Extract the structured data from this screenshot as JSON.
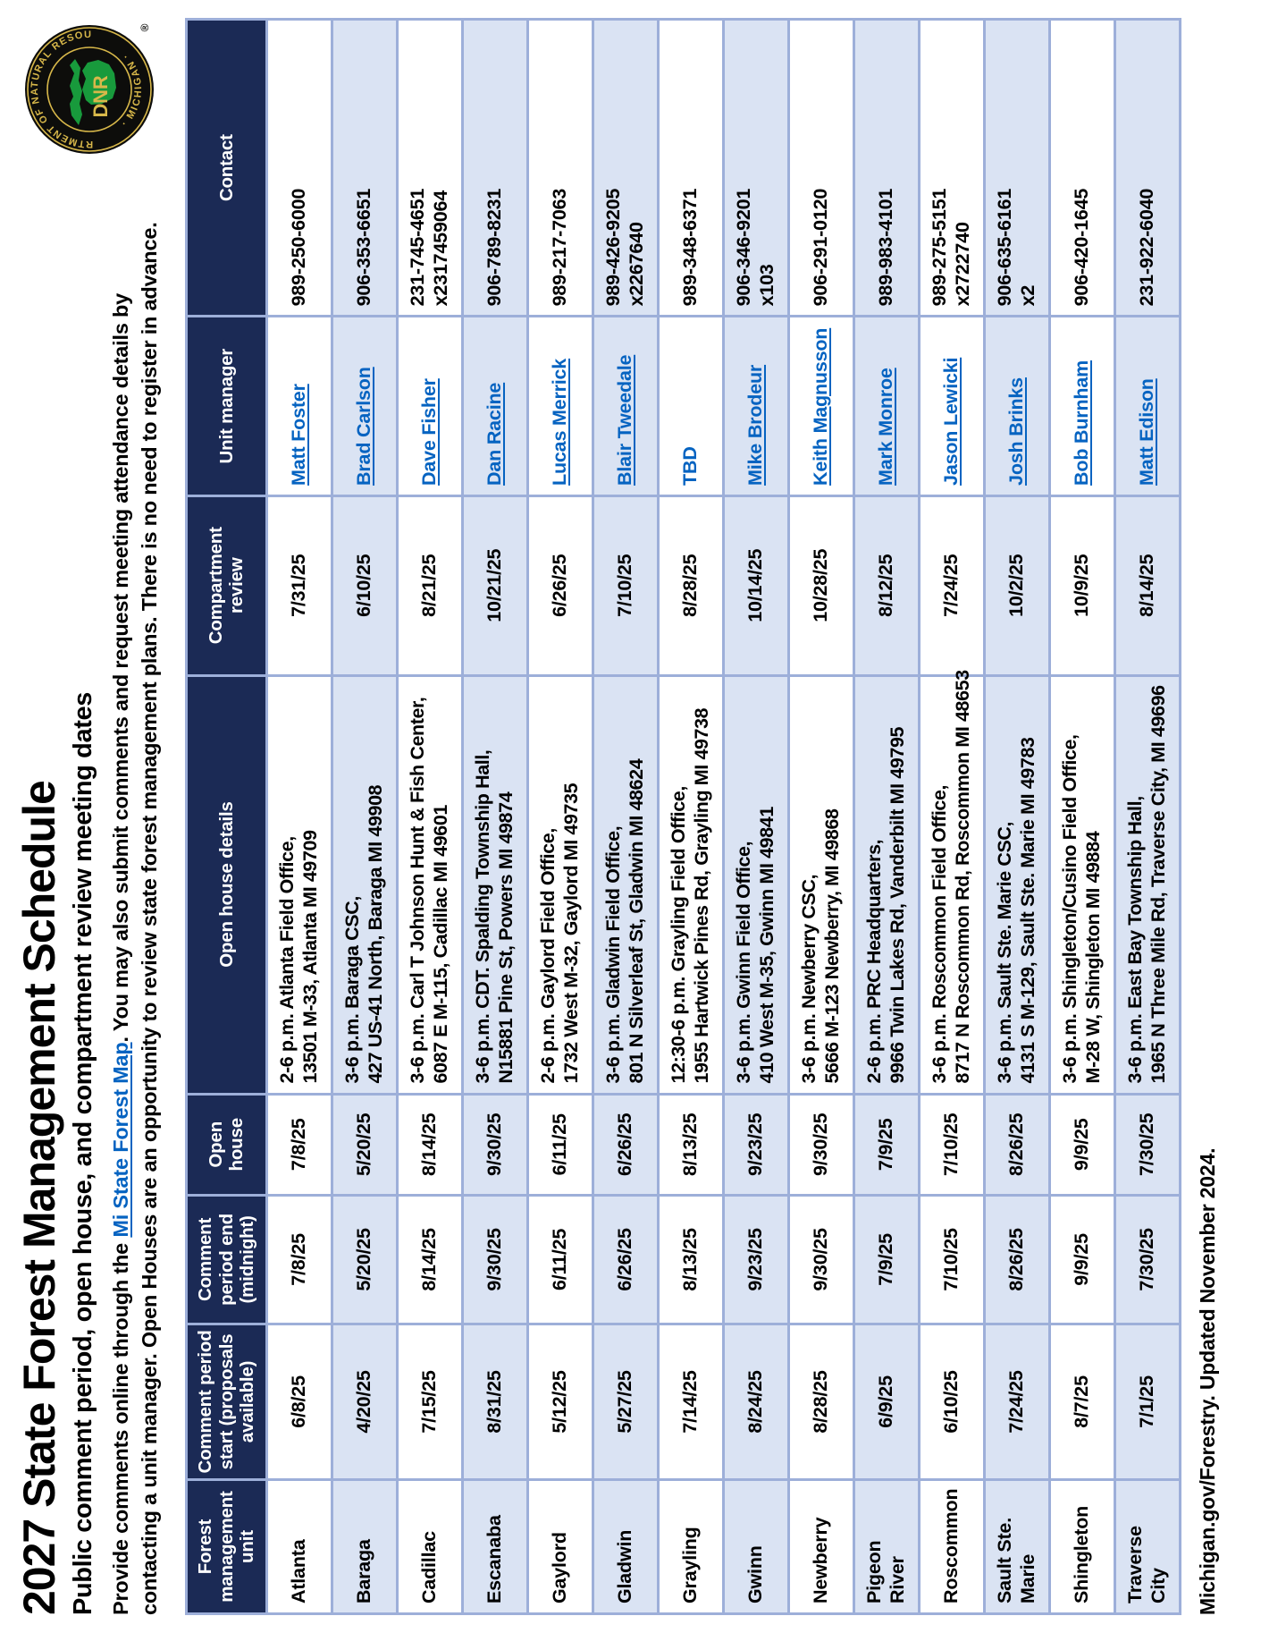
{
  "title": "2027 State Forest Management Schedule",
  "subtitle": "Public comment period, open house, and compartment review meeting dates",
  "intro": {
    "pre_link": "Provide comments online through the ",
    "link_text": "Mi State Forest Map",
    "line1_rest": ". You may also submit comments and request meeting attendance details by",
    "line2": "contacting a unit manager. Open Houses are an opportunity to review state forest management plans. There is no need to register in advance."
  },
  "logo": {
    "ring_text_top": "DEPARTMENT OF NATURAL RESOURCES",
    "ring_text_bottom": "· MICHIGAN ·",
    "acronym": "DNR",
    "registered": "®"
  },
  "colors": {
    "navy": "#1b2a55",
    "border": "#9dafd9",
    "shade": "#dae3f3",
    "link": "#0563c1",
    "logo_gold": "#d8b84a",
    "logo_green": "#189a3c"
  },
  "table": {
    "columns": [
      {
        "id": "unit",
        "label": "Forest management unit"
      },
      {
        "id": "comment_start",
        "label": "Comment period start (proposals available)"
      },
      {
        "id": "comment_end",
        "label": "Comment period end (midnight)"
      },
      {
        "id": "open_house",
        "label": "Open house"
      },
      {
        "id": "details",
        "label": "Open house details"
      },
      {
        "id": "review",
        "label": "Compartment review"
      },
      {
        "id": "manager",
        "label": "Unit manager"
      },
      {
        "id": "contact",
        "label": "Contact"
      }
    ],
    "rows": [
      {
        "unit": "Atlanta",
        "comment_start": "6/8/25",
        "comment_end": "7/8/25",
        "open_house": "7/8/25",
        "details": [
          "2-6 p.m. Atlanta Field Office,",
          "13501 M-33, Atlanta MI 49709"
        ],
        "review": "7/31/25",
        "manager": "Matt Foster",
        "manager_is_link": true,
        "contact": [
          "989-250-6000"
        ]
      },
      {
        "unit": "Baraga",
        "comment_start": "4/20/25",
        "comment_end": "5/20/25",
        "open_house": "5/20/25",
        "details": [
          "3-6 p.m. Baraga CSC,",
          "427 US-41 North, Baraga MI 49908"
        ],
        "review": "6/10/25",
        "manager": "Brad Carlson",
        "manager_is_link": true,
        "contact": [
          "906-353-6651"
        ]
      },
      {
        "unit": "Cadillac",
        "comment_start": "7/15/25",
        "comment_end": "8/14/25",
        "open_house": "8/14/25",
        "details": [
          "3-6 p.m. Carl T Johnson Hunt & Fish Center,",
          "6087 E M-115, Cadillac MI 49601"
        ],
        "review": "8/21/25",
        "manager": "Dave Fisher",
        "manager_is_link": true,
        "contact": [
          "231-745-4651",
          "x2317459064"
        ]
      },
      {
        "unit": "Escanaba",
        "comment_start": "8/31/25",
        "comment_end": "9/30/25",
        "open_house": "9/30/25",
        "details": [
          "3-6 p.m. CDT. Spalding Township Hall,",
          "N15881 Pine St, Powers MI 49874"
        ],
        "review": "10/21/25",
        "manager": "Dan Racine",
        "manager_is_link": true,
        "contact": [
          "906-789-8231"
        ]
      },
      {
        "unit": "Gaylord",
        "comment_start": "5/12/25",
        "comment_end": "6/11/25",
        "open_house": "6/11/25",
        "details": [
          "2-6 p.m. Gaylord Field Office,",
          "1732 West M-32, Gaylord MI 49735"
        ],
        "review": "6/26/25",
        "manager": "Lucas Merrick",
        "manager_is_link": true,
        "contact": [
          "989-217-7063"
        ]
      },
      {
        "unit": "Gladwin",
        "comment_start": "5/27/25",
        "comment_end": "6/26/25",
        "open_house": "6/26/25",
        "details": [
          "3-6 p.m. Gladwin Field Office,",
          "801 N Silverleaf St, Gladwin MI 48624"
        ],
        "review": "7/10/25",
        "manager": "Blair Tweedale",
        "manager_is_link": true,
        "contact": [
          "989-426-9205",
          "x2267640"
        ]
      },
      {
        "unit": "Grayling",
        "comment_start": "7/14/25",
        "comment_end": "8/13/25",
        "open_house": "8/13/25",
        "details": [
          "12:30-6 p.m. Grayling Field Office,",
          "1955 Hartwick Pines Rd, Grayling MI 49738"
        ],
        "review": "8/28/25",
        "manager": "TBD",
        "manager_is_link": false,
        "contact": [
          "989-348-6371"
        ]
      },
      {
        "unit": "Gwinn",
        "comment_start": "8/24/25",
        "comment_end": "9/23/25",
        "open_house": "9/23/25",
        "details": [
          "3-6 p.m. Gwinn Field Office,",
          "410 West M-35, Gwinn MI 49841"
        ],
        "review": "10/14/25",
        "manager": "Mike Brodeur",
        "manager_is_link": true,
        "contact": [
          "906-346-9201",
          "x103"
        ]
      },
      {
        "unit": "Newberry",
        "comment_start": "8/28/25",
        "comment_end": "9/30/25",
        "open_house": "9/30/25",
        "details": [
          "3-6 p.m. Newberry CSC,",
          "5666 M-123 Newberry, MI 49868"
        ],
        "review": "10/28/25",
        "manager": "Keith Magnusson",
        "manager_is_link": true,
        "contact": [
          "906-291-0120"
        ]
      },
      {
        "unit": "Pigeon River",
        "comment_start": "6/9/25",
        "comment_end": "7/9/25",
        "open_house": "7/9/25",
        "details": [
          "2-6 p.m. PRC Headquarters,",
          "9966 Twin Lakes Rd, Vanderbilt MI 49795"
        ],
        "review": "8/12/25",
        "manager": "Mark Monroe",
        "manager_is_link": true,
        "contact": [
          "989-983-4101"
        ]
      },
      {
        "unit": "Roscommon",
        "comment_start": "6/10/25",
        "comment_end": "7/10/25",
        "open_house": "7/10/25",
        "details": [
          "3-6 p.m. Roscommon Field Office,",
          "8717 N Roscommon Rd, Roscommon MI 48653"
        ],
        "review": "7/24/25",
        "manager": "Jason Lewicki",
        "manager_is_link": true,
        "contact": [
          "989-275-5151",
          "x2722740"
        ]
      },
      {
        "unit": "Sault Ste. Marie",
        "comment_start": "7/24/25",
        "comment_end": "8/26/25",
        "open_house": "8/26/25",
        "details": [
          "3-6 p.m. Sault Ste. Marie CSC,",
          "4131 S M-129, Sault Ste. Marie MI 49783"
        ],
        "review": "10/2/25",
        "manager": "Josh Brinks",
        "manager_is_link": true,
        "contact": [
          "906-635-6161",
          "x2"
        ]
      },
      {
        "unit": "Shingleton",
        "comment_start": "8/7/25",
        "comment_end": "9/9/25",
        "open_house": "9/9/25",
        "details": [
          "3-6 p.m. Shingleton/Cusino Field Office,",
          "M-28 W, Shingleton MI 49884"
        ],
        "review": "10/9/25",
        "manager": "Bob Burnham",
        "manager_is_link": true,
        "contact": [
          "906-420-1645"
        ]
      },
      {
        "unit": "Traverse City",
        "comment_start": "7/1/25",
        "comment_end": "7/30/25",
        "open_house": "7/30/25",
        "details": [
          "3-6 p.m. East Bay Township Hall,",
          "1965 N Three Mile Rd, Traverse City, MI 49696"
        ],
        "review": "8/14/25",
        "manager": "Matt Edison",
        "manager_is_link": true,
        "contact": [
          "231-922-6040"
        ]
      }
    ]
  },
  "footer": {
    "text": "Michigan.gov/Forestry. Updated November 2024."
  }
}
